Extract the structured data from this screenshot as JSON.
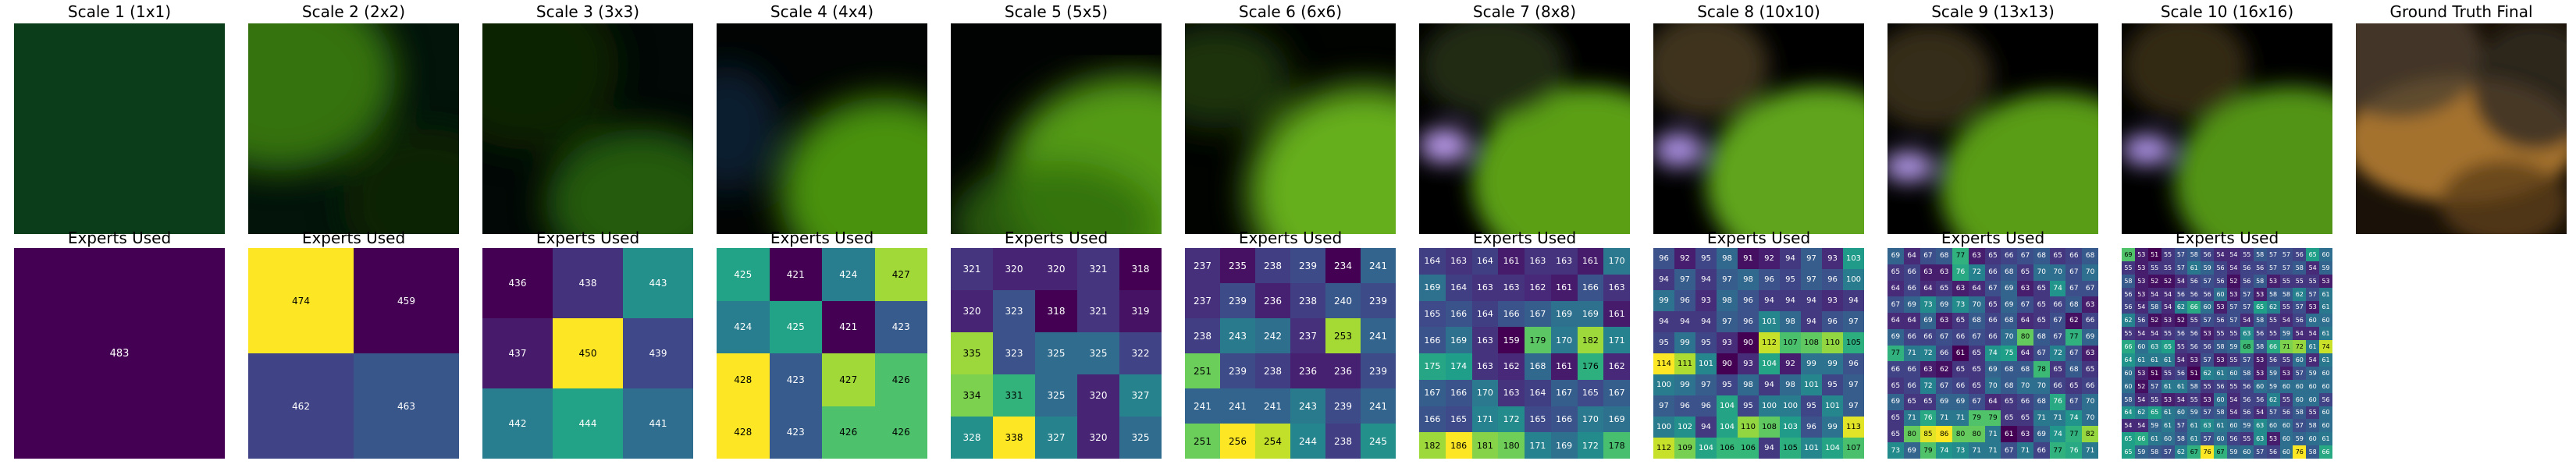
{
  "figure": {
    "recon_titles": [
      "Scale 1 (1x1)",
      "Scale 2 (2x2)",
      "Scale 3 (3x3)",
      "Scale 4 (4x4)",
      "Scale 5 (5x5)",
      "Scale 6 (6x6)",
      "Scale 7 (8x8)",
      "Scale 8 (10x10)",
      "Scale 9 (13x13)",
      "Scale 10 (16x16)",
      "Ground Truth Final"
    ],
    "grid_title": "Experts Used",
    "colormap": "viridis",
    "colormap_stops": [
      "#440154",
      "#482878",
      "#3e4a89",
      "#31688e",
      "#26828e",
      "#1f9e89",
      "#35b779",
      "#6ece58",
      "#b5de2b",
      "#fde725"
    ]
  },
  "chart_data": [
    {
      "type": "heatmap",
      "title": "Experts Used",
      "rows": 1,
      "cols": 1,
      "values": [
        [
          483
        ]
      ]
    },
    {
      "type": "heatmap",
      "title": "Experts Used",
      "rows": 2,
      "cols": 2,
      "values": [
        [
          474,
          459
        ],
        [
          462,
          463
        ]
      ]
    },
    {
      "type": "heatmap",
      "title": "Experts Used",
      "rows": 3,
      "cols": 3,
      "values": [
        [
          436,
          438,
          443
        ],
        [
          437,
          450,
          439
        ],
        [
          442,
          444,
          441
        ]
      ]
    },
    {
      "type": "heatmap",
      "title": "Experts Used",
      "rows": 4,
      "cols": 4,
      "values": [
        [
          425,
          421,
          424,
          427
        ],
        [
          424,
          425,
          421,
          423
        ],
        [
          428,
          423,
          427,
          426
        ],
        [
          428,
          423,
          426,
          426
        ]
      ]
    },
    {
      "type": "heatmap",
      "title": "Experts Used",
      "rows": 5,
      "cols": 5,
      "values": [
        [
          321,
          320,
          320,
          321,
          318
        ],
        [
          320,
          323,
          318,
          321,
          319
        ],
        [
          335,
          323,
          325,
          325,
          322
        ],
        [
          334,
          331,
          325,
          320,
          327
        ],
        [
          328,
          338,
          327,
          320,
          325
        ]
      ]
    },
    {
      "type": "heatmap",
      "title": "Experts Used",
      "rows": 6,
      "cols": 6,
      "values": [
        [
          237,
          235,
          238,
          239,
          234,
          241
        ],
        [
          237,
          239,
          236,
          238,
          240,
          239
        ],
        [
          238,
          243,
          242,
          237,
          253,
          241
        ],
        [
          251,
          239,
          238,
          236,
          236,
          239
        ],
        [
          241,
          241,
          241,
          243,
          239,
          241
        ],
        [
          251,
          256,
          254,
          244,
          238,
          245
        ]
      ]
    },
    {
      "type": "heatmap",
      "title": "Experts Used",
      "rows": 8,
      "cols": 8,
      "values": [
        [
          164,
          163,
          164,
          161,
          163,
          163,
          161,
          170
        ],
        [
          169,
          164,
          163,
          163,
          162,
          161,
          166,
          163
        ],
        [
          165,
          166,
          164,
          166,
          167,
          169,
          169,
          161
        ],
        [
          166,
          169,
          163,
          159,
          179,
          170,
          182,
          171
        ],
        [
          175,
          174,
          163,
          162,
          168,
          161,
          176,
          162
        ],
        [
          167,
          166,
          170,
          163,
          164,
          167,
          165,
          167
        ],
        [
          166,
          165,
          171,
          172,
          165,
          166,
          170,
          169
        ],
        [
          182,
          186,
          181,
          180,
          171,
          169,
          172,
          178
        ]
      ]
    },
    {
      "type": "heatmap",
      "title": "Experts Used",
      "rows": 10,
      "cols": 10,
      "values": [
        [
          96,
          92,
          95,
          98,
          91,
          92,
          94,
          97,
          93,
          103
        ],
        [
          94,
          97,
          94,
          97,
          98,
          96,
          95,
          97,
          96,
          100
        ],
        [
          99,
          96,
          93,
          98,
          96,
          94,
          94,
          94,
          93,
          94
        ],
        [
          94,
          94,
          94,
          97,
          96,
          101,
          98,
          94,
          96,
          97
        ],
        [
          95,
          99,
          95,
          93,
          90,
          112,
          107,
          108,
          110,
          105
        ],
        [
          114,
          111,
          101,
          90,
          93,
          104,
          92,
          99,
          99,
          96
        ],
        [
          100,
          99,
          97,
          95,
          98,
          94,
          98,
          101,
          95,
          97
        ],
        [
          97,
          96,
          96,
          104,
          95,
          100,
          100,
          95,
          101,
          97
        ],
        [
          100,
          102,
          94,
          104,
          110,
          108,
          103,
          96,
          99,
          113
        ],
        [
          112,
          109,
          104,
          106,
          106,
          94,
          105,
          101,
          104,
          107
        ]
      ]
    },
    {
      "type": "heatmap",
      "title": "Experts Used",
      "rows": 13,
      "cols": 13,
      "values": [
        [
          69,
          64,
          67,
          68,
          77,
          63,
          65,
          66,
          67,
          68,
          65,
          66,
          68
        ],
        [
          65,
          66,
          63,
          63,
          76,
          72,
          66,
          68,
          65,
          70,
          70,
          67,
          70
        ],
        [
          64,
          66,
          64,
          65,
          63,
          64,
          67,
          69,
          63,
          65,
          74,
          67,
          67
        ],
        [
          67,
          69,
          73,
          69,
          73,
          70,
          65,
          69,
          67,
          65,
          66,
          68,
          63
        ],
        [
          64,
          64,
          69,
          63,
          65,
          68,
          66,
          68,
          64,
          65,
          67,
          62,
          66
        ],
        [
          69,
          66,
          66,
          67,
          66,
          67,
          66,
          70,
          80,
          68,
          67,
          77,
          69
        ],
        [
          77,
          71,
          72,
          66,
          61,
          65,
          74,
          75,
          64,
          67,
          72,
          67,
          63
        ],
        [
          66,
          66,
          63,
          62,
          65,
          65,
          69,
          68,
          68,
          78,
          65,
          68,
          65
        ],
        [
          65,
          66,
          72,
          67,
          66,
          65,
          70,
          68,
          70,
          70,
          66,
          65,
          66
        ],
        [
          69,
          65,
          65,
          69,
          69,
          67,
          64,
          65,
          66,
          68,
          76,
          67,
          70
        ],
        [
          65,
          71,
          76,
          71,
          71,
          79,
          79,
          65,
          65,
          71,
          71,
          74,
          70
        ],
        [
          65,
          80,
          85,
          86,
          80,
          80,
          71,
          61,
          63,
          69,
          74,
          77,
          82
        ],
        [
          73,
          69,
          79,
          74,
          73,
          71,
          71,
          67,
          71,
          66,
          77,
          76,
          71
        ]
      ]
    },
    {
      "type": "heatmap",
      "title": "Experts Used",
      "rows": 16,
      "cols": 16,
      "values": [
        [
          69,
          53,
          51,
          55,
          57,
          58,
          56,
          54,
          54,
          55,
          58,
          57,
          57,
          56,
          65,
          60
        ],
        [
          55,
          53,
          55,
          55,
          57,
          61,
          59,
          56,
          54,
          56,
          56,
          57,
          57,
          58,
          54,
          59
        ],
        [
          58,
          53,
          52,
          52,
          54,
          56,
          57,
          56,
          52,
          56,
          58,
          53,
          55,
          55,
          55,
          53
        ],
        [
          56,
          53,
          54,
          54,
          56,
          56,
          56,
          60,
          53,
          57,
          53,
          58,
          58,
          62,
          57,
          61
        ],
        [
          56,
          54,
          58,
          54,
          62,
          66,
          60,
          53,
          57,
          57,
          65,
          62,
          55,
          57,
          53,
          61
        ],
        [
          62,
          56,
          52,
          53,
          52,
          55,
          57,
          56,
          57,
          54,
          58,
          55,
          54,
          56,
          60,
          60
        ],
        [
          55,
          54,
          54,
          55,
          56,
          56,
          53,
          55,
          55,
          63,
          56,
          55,
          59,
          54,
          54,
          61
        ],
        [
          66,
          60,
          63,
          65,
          55,
          56,
          56,
          58,
          59,
          68,
          58,
          66,
          71,
          72,
          61,
          74
        ],
        [
          64,
          61,
          61,
          61,
          54,
          53,
          57,
          53,
          55,
          57,
          53,
          56,
          55,
          60,
          54,
          61
        ],
        [
          60,
          53,
          51,
          55,
          56,
          51,
          62,
          61,
          60,
          58,
          53,
          59,
          53,
          57,
          59,
          60
        ],
        [
          60,
          52,
          57,
          61,
          61,
          58,
          55,
          56,
          55,
          56,
          60,
          59,
          60,
          60,
          60,
          60
        ],
        [
          58,
          54,
          55,
          53,
          54,
          55,
          53,
          60,
          54,
          56,
          56,
          62,
          55,
          60,
          60,
          56
        ],
        [
          64,
          62,
          65,
          61,
          60,
          59,
          57,
          58,
          54,
          56,
          54,
          57,
          56,
          58,
          55,
          60
        ],
        [
          54,
          54,
          59,
          61,
          57,
          61,
          63,
          61,
          60,
          59,
          63,
          60,
          60,
          57,
          58,
          60
        ],
        [
          65,
          66,
          61,
          60,
          58,
          61,
          57,
          60,
          56,
          55,
          63,
          53,
          60,
          59,
          60,
          61
        ],
        [
          65,
          59,
          58,
          57,
          62,
          67,
          76,
          67,
          59,
          60,
          57,
          56,
          60,
          76,
          58,
          66
        ]
      ]
    }
  ]
}
